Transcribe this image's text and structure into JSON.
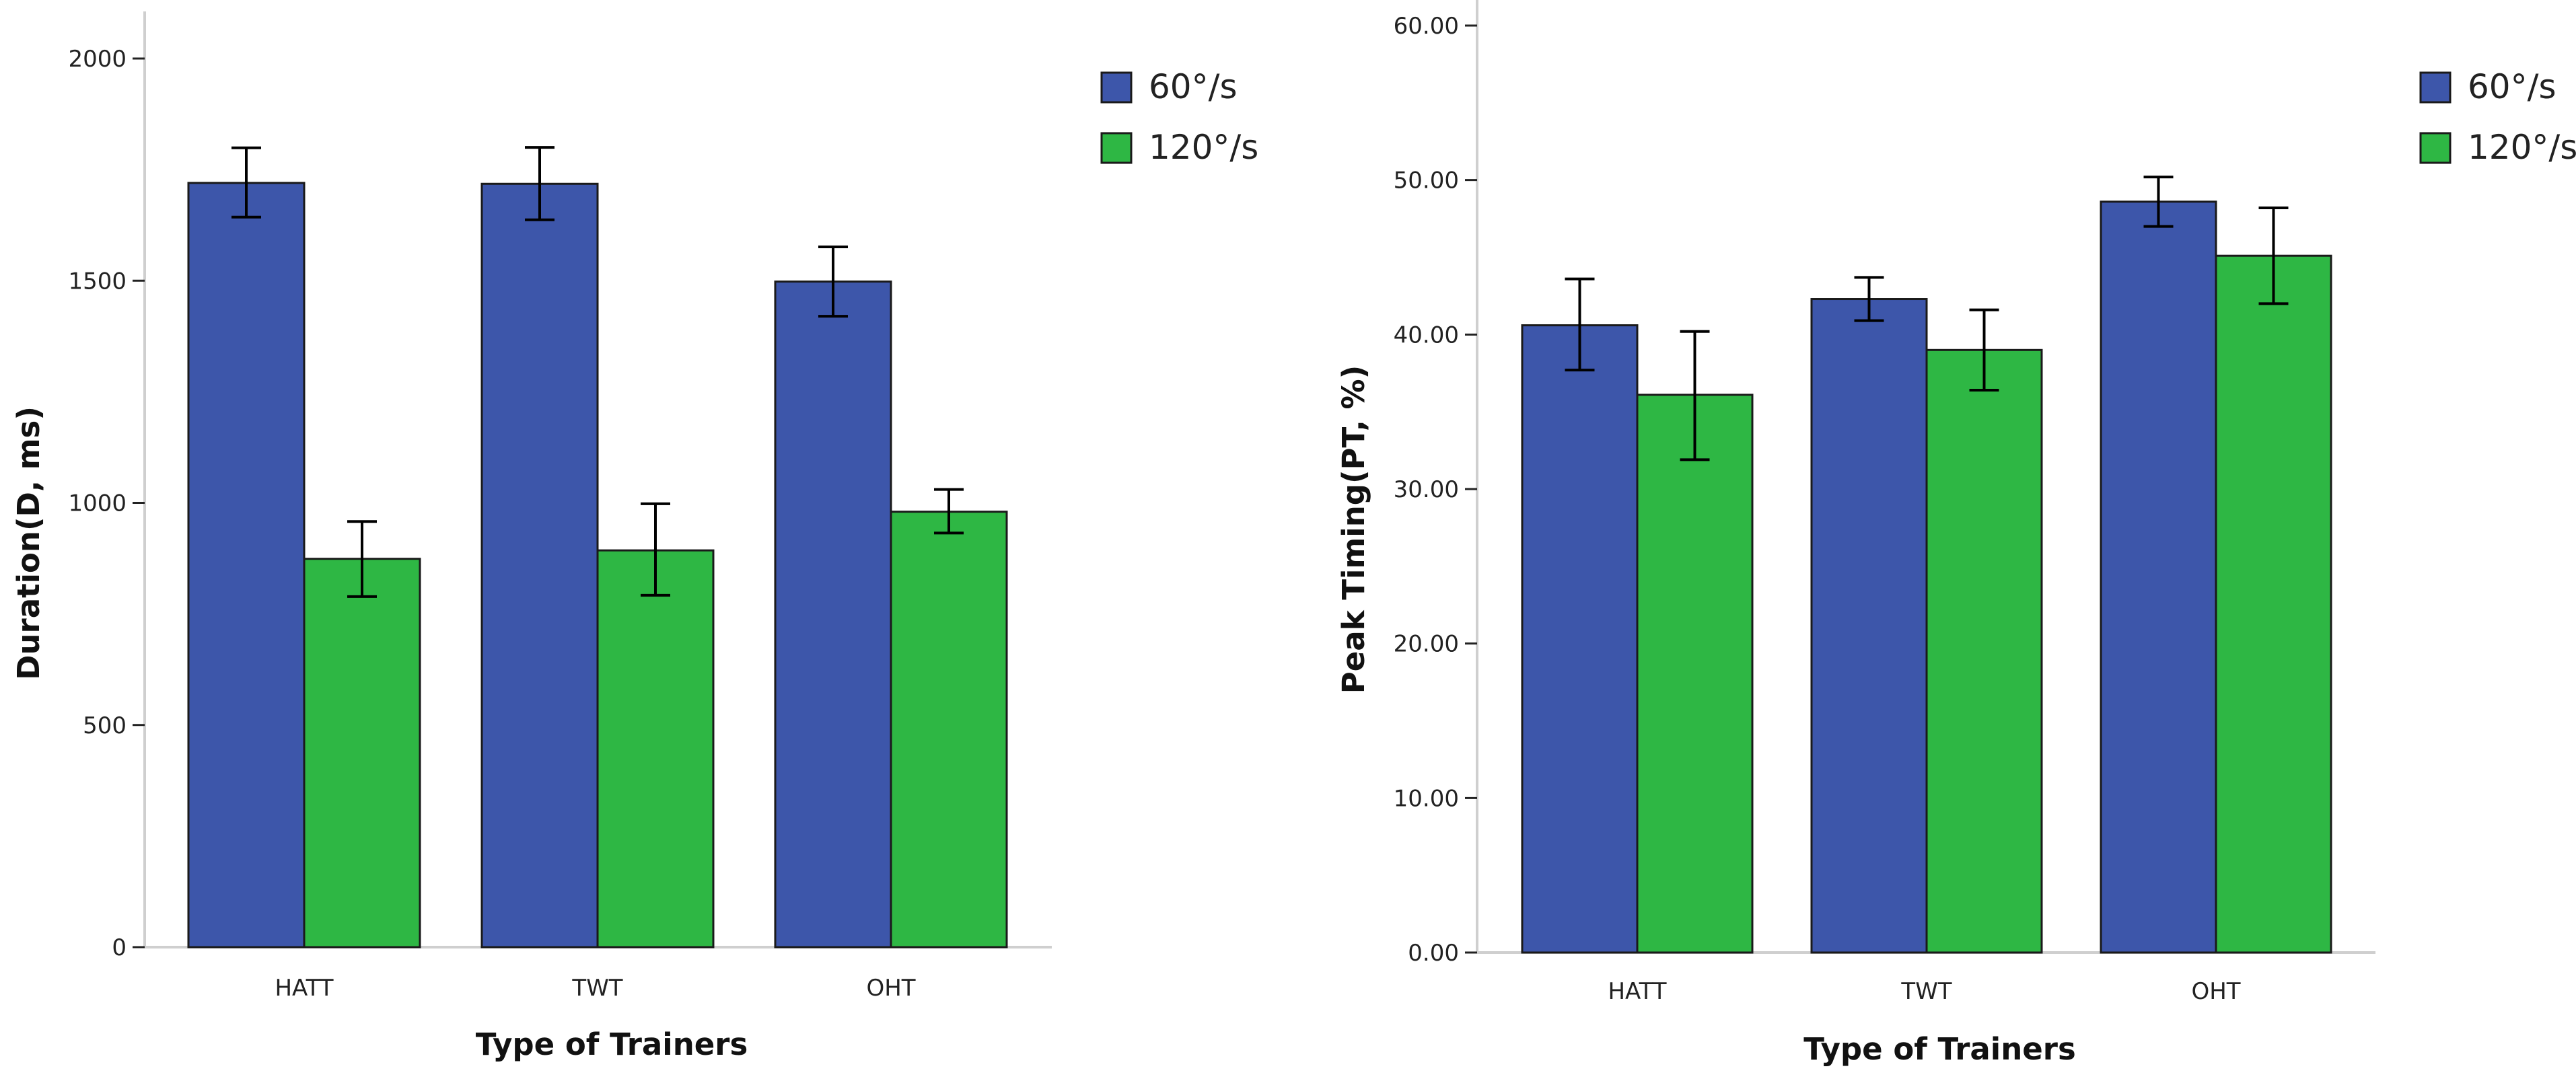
{
  "chart_data": [
    {
      "type": "bar",
      "xlabel": "Type of Trainers",
      "ylabel": "Duration(D, ms)",
      "categories": [
        "HATT",
        "TWT",
        "OHT"
      ],
      "ylim": [
        0,
        2000
      ],
      "yticks": [
        0,
        500,
        1000,
        1500,
        2000
      ],
      "ytick_labels": [
        "0",
        "500",
        "1000",
        "1500",
        "2000"
      ],
      "grid": false,
      "legend_position": "top-right",
      "series": [
        {
          "name": "60°/s",
          "color": "#3D56AA",
          "values": [
            1720,
            1718,
            1498
          ],
          "err_low": [
            1643,
            1637,
            1420
          ],
          "err_high": [
            1799,
            1800,
            1576
          ]
        },
        {
          "name": "120°/s",
          "color": "#2EB744",
          "values": [
            874,
            893,
            980
          ],
          "err_low": [
            789,
            792,
            932
          ],
          "err_high": [
            958,
            998,
            1030
          ]
        }
      ]
    },
    {
      "type": "bar",
      "xlabel": "Type of Trainers",
      "ylabel": "Peak Timing(PT, %)",
      "categories": [
        "HATT",
        "TWT",
        "OHT"
      ],
      "ylim": [
        0,
        60
      ],
      "yticks": [
        0,
        10,
        20,
        30,
        40,
        50,
        60
      ],
      "ytick_labels": [
        "0.00",
        "10.00",
        "20.00",
        "30.00",
        "40.00",
        "50.00",
        "60.00"
      ],
      "grid": false,
      "legend_position": "top-right",
      "series": [
        {
          "name": "60°/s",
          "color": "#3D56AA",
          "values": [
            40.6,
            42.3,
            48.6
          ],
          "err_low": [
            37.7,
            40.9,
            47.0
          ],
          "err_high": [
            43.6,
            43.7,
            50.2
          ]
        },
        {
          "name": "120°/s",
          "color": "#2EB744",
          "values": [
            36.1,
            39.0,
            45.1
          ],
          "err_low": [
            31.9,
            36.4,
            42.0
          ],
          "err_high": [
            40.2,
            41.6,
            48.2
          ]
        }
      ]
    }
  ]
}
